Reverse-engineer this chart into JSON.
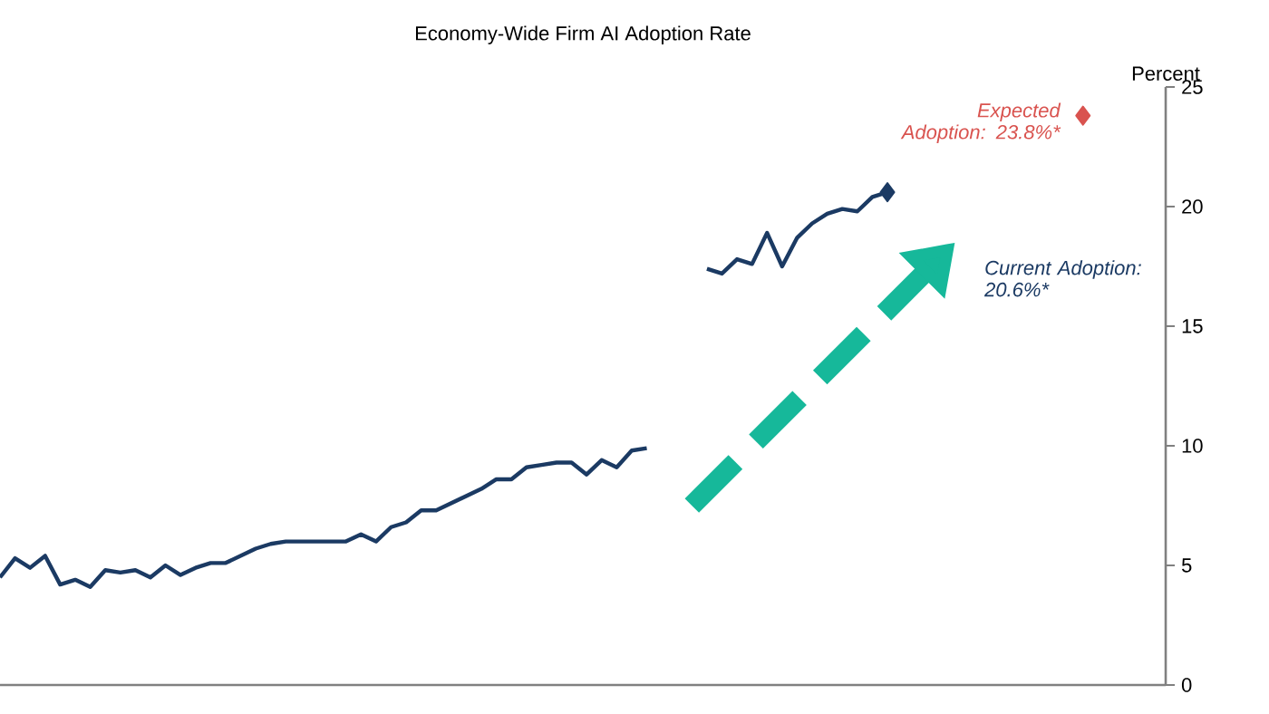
{
  "chart_data": {
    "type": "line",
    "title": "Economy-Wide Firm AI Adoption Rate",
    "ylabel": "Percent",
    "categories": [
      null,
      null,
      null,
      null,
      null,
      null,
      null,
      null,
      null,
      null,
      null,
      null,
      null,
      null,
      null,
      null,
      null,
      null,
      null,
      null,
      null,
      null,
      null,
      null,
      null,
      null,
      null,
      null,
      null,
      null,
      null,
      null,
      null,
      null,
      null,
      null,
      null,
      null,
      null,
      null,
      null,
      null,
      null,
      null,
      null,
      null,
      null,
      null,
      null,
      null,
      null,
      null,
      null,
      null,
      null,
      null,
      null,
      null,
      null,
      null,
      null,
      null,
      null,
      null,
      null,
      null,
      null,
      null,
      null,
      null,
      null,
      null,
      null,
      null,
      null,
      null,
      null,
      null
    ],
    "ylim": [
      0,
      25
    ],
    "yticks": [
      0,
      5,
      10,
      15,
      20,
      25
    ],
    "series": [
      {
        "color": "#1b3a63",
        "values": [
          4.5,
          5.3,
          4.9,
          5.4,
          4.2,
          4.4,
          4.1,
          4.8,
          4.7,
          4.8,
          4.5,
          5.0,
          4.6,
          4.9,
          5.1,
          5.1,
          5.4,
          5.7,
          5.9,
          6.0,
          6.0,
          6.0,
          6.0,
          6.0,
          6.3,
          6.0,
          6.6,
          6.8,
          7.3,
          7.3,
          7.6,
          7.9,
          8.2,
          8.6,
          8.6,
          9.1,
          9.2,
          9.3,
          9.3,
          8.8,
          9.4,
          9.1,
          9.8,
          9.9,
          null,
          null,
          null,
          17.4,
          17.2,
          17.8,
          17.6,
          18.9,
          17.5,
          18.7,
          19.3,
          19.7,
          19.9,
          19.8,
          20.4,
          20.6,
          null,
          null,
          null,
          null,
          null,
          null,
          null,
          null,
          null,
          null,
          null,
          null,
          null,
          null,
          null,
          null,
          null,
          null
        ]
      },
      {
        "color": "#1b3a63",
        "marker": "diamond",
        "values": [
          null,
          null,
          null,
          null,
          null,
          null,
          null,
          null,
          null,
          null,
          null,
          null,
          null,
          null,
          null,
          null,
          null,
          null,
          null,
          null,
          null,
          null,
          null,
          null,
          null,
          null,
          null,
          null,
          null,
          null,
          null,
          null,
          null,
          null,
          null,
          null,
          null,
          null,
          null,
          null,
          null,
          null,
          null,
          null,
          null,
          null,
          null,
          null,
          null,
          null,
          null,
          null,
          null,
          null,
          null,
          null,
          null,
          null,
          null,
          20.6,
          null,
          null,
          null,
          null,
          null,
          null,
          null,
          null,
          null,
          null,
          null,
          null,
          null,
          null,
          null,
          null,
          null,
          null
        ]
      },
      {
        "color": "#d9534f",
        "marker": "diamond",
        "values": [
          null,
          null,
          null,
          null,
          null,
          null,
          null,
          null,
          null,
          null,
          null,
          null,
          null,
          null,
          null,
          null,
          null,
          null,
          null,
          null,
          null,
          null,
          null,
          null,
          null,
          null,
          null,
          null,
          null,
          null,
          null,
          null,
          null,
          null,
          null,
          null,
          null,
          null,
          null,
          null,
          null,
          null,
          null,
          null,
          null,
          null,
          null,
          null,
          null,
          null,
          null,
          null,
          null,
          null,
          null,
          null,
          null,
          null,
          null,
          null,
          null,
          null,
          null,
          null,
          null,
          null,
          null,
          null,
          null,
          null,
          null,
          null,
          23.8,
          null,
          null,
          null,
          null,
          null
        ]
      }
    ],
    "annotations": [
      "Expected Adoption: 23.8%*",
      "Current Adoption: 20.6%*"
    ]
  }
}
